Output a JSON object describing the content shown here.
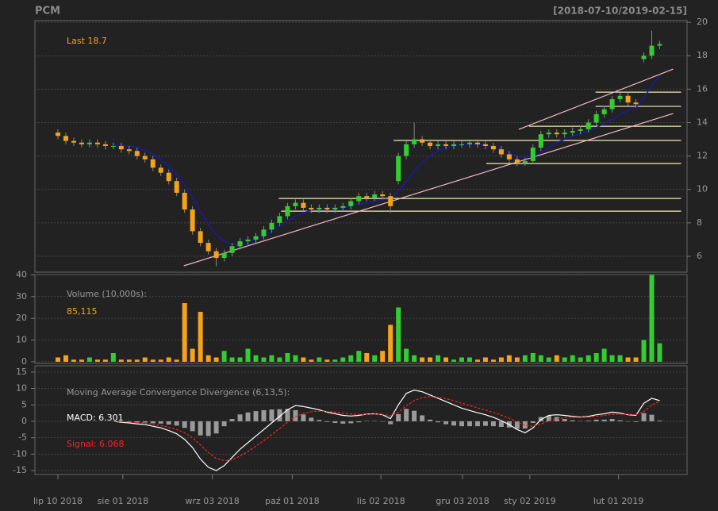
{
  "title": "PCM",
  "date_range": "[2018-07-10/2019-02-15]",
  "chart_data": [
    {
      "type": "candlestick",
      "annotation": "Last 18.7",
      "annotation_color": "#f5a31a",
      "up_color": "#33cc33",
      "down_color": "#f5a31a",
      "ylim": [
        5.05,
        20.1
      ],
      "yticks": [
        6,
        8,
        10,
        12,
        14,
        16,
        18,
        20
      ],
      "grid": true,
      "open": [
        13.4,
        13.2,
        12.9,
        12.8,
        12.7,
        12.8,
        12.7,
        12.6,
        12.6,
        12.4,
        12.3,
        12.0,
        11.8,
        11.3,
        11.0,
        10.5,
        9.8,
        8.8,
        7.5,
        6.8,
        6.3,
        5.9,
        6.2,
        6.6,
        6.9,
        7.0,
        7.2,
        7.6,
        8.0,
        8.4,
        9.0,
        9.2,
        8.9,
        8.8,
        8.9,
        8.8,
        8.9,
        9.0,
        9.3,
        9.6,
        9.5,
        9.7,
        9.6,
        10.5,
        12.0,
        12.7,
        13.0,
        12.8,
        12.6,
        12.7,
        12.6,
        12.7,
        12.7,
        12.8,
        12.7,
        12.6,
        12.4,
        12.1,
        11.8,
        11.6,
        11.7,
        12.5,
        13.3,
        13.4,
        13.3,
        13.4,
        13.5,
        13.6,
        14.0,
        14.5,
        14.8,
        15.4,
        15.6,
        15.2,
        17.8,
        18.0,
        18.6
      ],
      "high": [
        13.6,
        13.4,
        13.1,
        13.0,
        13.0,
        13.0,
        12.9,
        12.8,
        12.8,
        12.6,
        12.5,
        12.2,
        12.0,
        11.5,
        11.2,
        10.7,
        10.0,
        9.0,
        7.7,
        7.0,
        6.5,
        6.4,
        6.8,
        7.1,
        7.2,
        7.4,
        7.8,
        8.2,
        8.6,
        9.2,
        9.4,
        9.4,
        9.1,
        9.1,
        9.1,
        9.1,
        9.2,
        9.5,
        9.8,
        9.8,
        9.9,
        9.9,
        9.8,
        12.2,
        12.9,
        14.0,
        13.2,
        13.0,
        12.9,
        12.9,
        12.9,
        12.9,
        13.0,
        13.0,
        12.9,
        12.8,
        12.6,
        12.3,
        12.0,
        11.9,
        12.7,
        13.5,
        13.6,
        13.6,
        13.6,
        13.7,
        13.8,
        14.2,
        14.7,
        15.0,
        15.6,
        15.8,
        15.8,
        15.4,
        18.2,
        19.5,
        18.9
      ],
      "low": [
        13.0,
        12.7,
        12.6,
        12.5,
        12.5,
        12.5,
        12.4,
        12.4,
        12.2,
        12.1,
        11.8,
        11.6,
        11.1,
        10.8,
        10.3,
        9.6,
        8.6,
        7.3,
        6.6,
        6.1,
        5.4,
        5.7,
        6.0,
        6.4,
        6.7,
        6.8,
        7.0,
        7.4,
        7.8,
        8.2,
        8.8,
        8.7,
        8.6,
        8.6,
        8.6,
        8.6,
        8.7,
        8.8,
        9.1,
        9.3,
        9.3,
        9.4,
        8.6,
        10.3,
        11.8,
        12.5,
        12.6,
        12.4,
        12.4,
        12.4,
        12.4,
        12.5,
        12.5,
        12.5,
        12.4,
        12.2,
        11.9,
        11.6,
        11.4,
        11.4,
        11.5,
        12.3,
        13.1,
        13.1,
        13.1,
        13.2,
        13.3,
        13.4,
        13.8,
        14.3,
        14.6,
        15.2,
        15.0,
        14.9,
        17.6,
        17.8,
        18.4
      ],
      "close": [
        13.2,
        12.9,
        12.8,
        12.7,
        12.8,
        12.7,
        12.6,
        12.6,
        12.4,
        12.3,
        12.0,
        11.8,
        11.3,
        11.0,
        10.5,
        9.8,
        8.8,
        7.5,
        6.8,
        6.3,
        5.9,
        6.2,
        6.6,
        6.9,
        7.0,
        7.2,
        7.6,
        8.0,
        8.4,
        9.0,
        9.2,
        8.9,
        8.8,
        8.9,
        8.8,
        8.9,
        9.0,
        9.3,
        9.6,
        9.5,
        9.7,
        9.6,
        9.0,
        12.0,
        12.7,
        13.0,
        12.8,
        12.6,
        12.7,
        12.6,
        12.7,
        12.7,
        12.8,
        12.7,
        12.6,
        12.4,
        12.1,
        11.8,
        11.6,
        11.7,
        12.5,
        13.3,
        13.4,
        13.3,
        13.4,
        13.5,
        13.6,
        14.0,
        14.5,
        14.8,
        15.4,
        15.6,
        15.2,
        15.1,
        18.0,
        18.6,
        18.7
      ],
      "ma": {
        "color": "#1a1aa0",
        "values": [
          null,
          null,
          null,
          null,
          null,
          null,
          null,
          12.7,
          12.65,
          12.6,
          12.5,
          12.35,
          12.1,
          11.8,
          11.4,
          10.9,
          10.3,
          9.5,
          8.7,
          7.9,
          7.3,
          6.9,
          6.7,
          6.7,
          6.8,
          7.0,
          7.2,
          7.5,
          7.8,
          8.1,
          8.4,
          8.6,
          8.75,
          8.85,
          8.9,
          8.9,
          8.9,
          9.0,
          9.1,
          9.2,
          9.3,
          9.4,
          9.4,
          9.9,
          10.5,
          11.1,
          11.6,
          12.0,
          12.3,
          12.5,
          12.6,
          12.7,
          12.7,
          12.7,
          12.65,
          12.55,
          12.4,
          12.2,
          12.0,
          11.9,
          11.95,
          12.2,
          12.5,
          12.8,
          13.0,
          13.2,
          13.35,
          13.5,
          13.7,
          13.95,
          14.2,
          14.5,
          14.7,
          14.9,
          15.5,
          16.2,
          16.8
        ]
      },
      "trend_color": "#f4b6c8",
      "trend_lines": [
        {
          "x": [
            15.9,
            77.7
          ],
          "y": [
            5.43,
            14.54
          ]
        },
        {
          "x": [
            58.2,
            77.7
          ],
          "y": [
            13.59,
            17.2
          ]
        }
      ],
      "level_color": "#f3ecb0",
      "levels": [
        {
          "x": [
            27.9,
            78.7
          ],
          "y": 9.46
        },
        {
          "x": [
            28.2,
            78.7
          ],
          "y": 8.7
        },
        {
          "x": [
            42.4,
            78.7
          ],
          "y": 12.93
        },
        {
          "x": [
            54.1,
            78.7
          ],
          "y": 11.55
        },
        {
          "x": [
            59.5,
            78.7
          ],
          "y": 13.78
        },
        {
          "x": [
            67.9,
            78.7
          ],
          "y": 14.97
        },
        {
          "x": [
            67.9,
            78.7
          ],
          "y": 15.82
        }
      ]
    },
    {
      "type": "volume",
      "title": "Volume (10,000s):",
      "last_label": "85,115",
      "last_color": "#f5a31a",
      "ylim": [
        -0.75,
        40.15
      ],
      "yticks": [
        0,
        10,
        20,
        30,
        40
      ],
      "grid": true,
      "values": [
        2,
        3,
        1,
        1,
        2,
        1,
        1,
        4,
        1,
        1,
        1,
        2,
        1,
        1,
        2,
        1,
        27,
        6,
        23,
        3,
        2,
        5,
        2,
        2,
        6,
        3,
        2,
        3,
        2,
        4,
        3,
        2,
        1,
        2,
        1,
        1,
        2,
        3,
        5,
        4,
        3,
        5,
        17,
        25,
        6,
        3,
        2,
        2,
        3,
        2,
        1,
        2,
        2,
        1,
        2,
        1,
        2,
        3,
        2,
        3,
        4,
        3,
        2,
        3,
        2,
        3,
        2,
        3,
        4,
        6,
        3,
        3,
        2,
        2,
        10,
        40,
        8.5115
      ]
    },
    {
      "type": "macd",
      "title": "Moving Average Convergence Divergence (6,13,5):",
      "macd_label": "MACD: 6.301",
      "signal_label": "Signal: 6.068",
      "ylim": [
        -16.2,
        16.9
      ],
      "yticks": [
        -15,
        -10,
        -5,
        0,
        5,
        10,
        15
      ],
      "grid": true,
      "macd": {
        "color": "#ffffff",
        "values": [
          null,
          null,
          null,
          null,
          null,
          null,
          null,
          0,
          -0.3,
          -0.5,
          -0.8,
          -1.0,
          -1.5,
          -2.0,
          -2.8,
          -3.8,
          -5.5,
          -8.0,
          -11.5,
          -14.0,
          -15.0,
          -13.5,
          -11.0,
          -8.5,
          -6.5,
          -4.5,
          -2.5,
          -0.5,
          1.5,
          3.5,
          4.8,
          4.5,
          4.0,
          3.5,
          2.8,
          2.3,
          1.8,
          1.6,
          1.8,
          2.2,
          2.3,
          2.0,
          0.8,
          5.0,
          8.5,
          9.5,
          9.0,
          8.0,
          7.0,
          6.0,
          5.0,
          4.0,
          3.3,
          2.6,
          2.0,
          1.2,
          0.2,
          -1.0,
          -2.5,
          -3.5,
          -2.0,
          0.5,
          1.8,
          2.0,
          1.8,
          1.5,
          1.3,
          1.5,
          2.0,
          2.3,
          2.8,
          2.5,
          2.0,
          1.8,
          5.5,
          7.0,
          6.301
        ]
      },
      "signal": {
        "color": "#ff2020",
        "values": [
          null,
          null,
          null,
          null,
          null,
          null,
          null,
          0,
          -0.1,
          -0.2,
          -0.4,
          -0.6,
          -0.9,
          -1.3,
          -1.8,
          -2.5,
          -3.5,
          -5.0,
          -7.2,
          -9.5,
          -11.3,
          -12.0,
          -11.7,
          -10.6,
          -9.2,
          -7.6,
          -5.9,
          -4.1,
          -2.2,
          -0.3,
          1.4,
          2.4,
          2.9,
          3.1,
          3.0,
          2.8,
          2.5,
          2.2,
          2.1,
          2.1,
          2.2,
          2.1,
          1.7,
          2.8,
          4.7,
          6.3,
          7.2,
          7.5,
          7.3,
          6.9,
          6.3,
          5.5,
          4.8,
          4.1,
          3.4,
          2.7,
          1.9,
          0.9,
          -0.2,
          -1.3,
          -1.5,
          -0.8,
          0.1,
          0.7,
          1.1,
          1.2,
          1.2,
          1.3,
          1.5,
          1.8,
          2.1,
          2.2,
          2.1,
          2.0,
          3.0,
          5.0,
          6.068
        ]
      },
      "histogram": {
        "color": "#9a9a9a",
        "values": [
          null,
          null,
          null,
          null,
          null,
          null,
          null,
          0,
          -0.2,
          -0.3,
          -0.4,
          -0.4,
          -0.6,
          -0.7,
          -1.0,
          -1.3,
          -2.0,
          -3.0,
          -4.3,
          -4.5,
          -3.7,
          -1.5,
          0.7,
          2.1,
          2.7,
          3.1,
          3.4,
          3.6,
          3.7,
          3.8,
          3.4,
          2.1,
          1.1,
          0.4,
          -0.2,
          -0.5,
          -0.7,
          -0.6,
          -0.3,
          0.1,
          0.1,
          -0.1,
          -0.9,
          2.2,
          3.8,
          3.2,
          1.8,
          0.5,
          -0.3,
          -0.9,
          -1.3,
          -1.5,
          -1.5,
          -1.5,
          -1.4,
          -1.5,
          -1.7,
          -1.9,
          -2.3,
          -2.2,
          -0.5,
          1.3,
          1.7,
          1.3,
          0.7,
          0.3,
          0.1,
          0.2,
          0.5,
          0.5,
          0.7,
          0.3,
          -0.1,
          -0.2,
          2.5,
          2.0,
          0.233
        ]
      },
      "xticks": [
        {
          "value": 0,
          "label": "lip 10 2018"
        },
        {
          "value": 8.2,
          "label": "sie 01 2018"
        },
        {
          "value": 19.5,
          "label": "wrz 03 2018"
        },
        {
          "value": 29.6,
          "label": "paź 01 2018"
        },
        {
          "value": 40.8,
          "label": "lis 02 2018"
        },
        {
          "value": 51.1,
          "label": "gru 03 2018"
        },
        {
          "value": 59.6,
          "label": "sty 02 2019"
        },
        {
          "value": 70.8,
          "label": "lut 01 2019"
        }
      ]
    }
  ]
}
